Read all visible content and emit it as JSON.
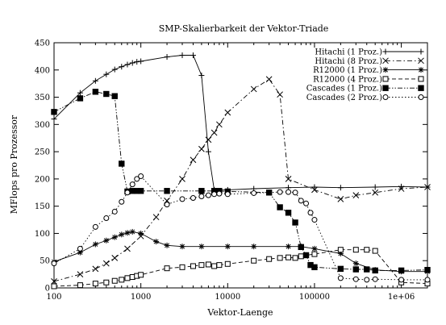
{
  "chart_data": {
    "type": "line",
    "title": "SMP-Skalierbarkeit der Vektor-Triade",
    "xlabel": "Vektor-Laenge",
    "ylabel": "MFlops pro Prozessor",
    "xscale": "log",
    "xlim": [
      100,
      2000000
    ],
    "ylim": [
      0,
      450
    ],
    "xticks": [
      {
        "value": 100,
        "label": "100"
      },
      {
        "value": 1000,
        "label": "1000"
      },
      {
        "value": 10000,
        "label": "10000"
      },
      {
        "value": 100000,
        "label": "100000"
      },
      {
        "value": 1000000,
        "label": "1e+06"
      }
    ],
    "yticks": [
      {
        "value": 0,
        "label": "0"
      },
      {
        "value": 50,
        "label": "50"
      },
      {
        "value": 100,
        "label": "100"
      },
      {
        "value": 150,
        "label": "150"
      },
      {
        "value": 200,
        "label": "200"
      },
      {
        "value": 250,
        "label": "250"
      },
      {
        "value": 300,
        "label": "300"
      },
      {
        "value": 350,
        "label": "350"
      },
      {
        "value": 400,
        "label": "400"
      },
      {
        "value": 450,
        "label": "450"
      }
    ],
    "legend_position": "top-right",
    "grid": false,
    "series": [
      {
        "name": "Hitachi (1 Proz.)",
        "marker": "plus",
        "dash": "solid",
        "points": [
          [
            100,
            310
          ],
          [
            200,
            358
          ],
          [
            300,
            380
          ],
          [
            400,
            392
          ],
          [
            500,
            401
          ],
          [
            600,
            406
          ],
          [
            700,
            410
          ],
          [
            800,
            413
          ],
          [
            900,
            415
          ],
          [
            1000,
            416
          ],
          [
            2000,
            424
          ],
          [
            3000,
            427
          ],
          [
            4000,
            427
          ],
          [
            5000,
            390
          ],
          [
            6000,
            250
          ],
          [
            7000,
            180
          ],
          [
            10000,
            180
          ],
          [
            20000,
            182
          ],
          [
            50000,
            184
          ],
          [
            100000,
            185
          ],
          [
            200000,
            184
          ],
          [
            500000,
            185
          ],
          [
            1000000,
            186
          ],
          [
            2000000,
            185
          ]
        ]
      },
      {
        "name": "Hitachi (8 Proz.)",
        "marker": "x",
        "dash": "dashdot",
        "points": [
          [
            100,
            12
          ],
          [
            200,
            25
          ],
          [
            300,
            35
          ],
          [
            400,
            45
          ],
          [
            500,
            55
          ],
          [
            700,
            72
          ],
          [
            1000,
            95
          ],
          [
            1500,
            130
          ],
          [
            2000,
            160
          ],
          [
            3000,
            200
          ],
          [
            4000,
            235
          ],
          [
            5000,
            255
          ],
          [
            6000,
            272
          ],
          [
            7000,
            285
          ],
          [
            8000,
            300
          ],
          [
            10000,
            322
          ],
          [
            20000,
            365
          ],
          [
            30000,
            383
          ],
          [
            40000,
            355
          ],
          [
            50000,
            200
          ],
          [
            100000,
            180
          ],
          [
            200000,
            163
          ],
          [
            300000,
            170
          ],
          [
            500000,
            175
          ],
          [
            1000000,
            182
          ],
          [
            2000000,
            185
          ]
        ]
      },
      {
        "name": "R12000 (1 Proz.)",
        "marker": "star",
        "dash": "solid",
        "points": [
          [
            100,
            48
          ],
          [
            200,
            65
          ],
          [
            300,
            80
          ],
          [
            400,
            87
          ],
          [
            500,
            93
          ],
          [
            600,
            98
          ],
          [
            700,
            101
          ],
          [
            800,
            103
          ],
          [
            1000,
            100
          ],
          [
            1500,
            85
          ],
          [
            2000,
            78
          ],
          [
            3000,
            76
          ],
          [
            5000,
            76
          ],
          [
            10000,
            76
          ],
          [
            20000,
            76
          ],
          [
            50000,
            76
          ],
          [
            70000,
            76
          ],
          [
            100000,
            72
          ],
          [
            200000,
            63
          ],
          [
            300000,
            45
          ],
          [
            500000,
            33
          ],
          [
            1000000,
            30
          ],
          [
            2000000,
            30
          ]
        ]
      },
      {
        "name": "R12000 (4 Proz.)",
        "marker": "square-open",
        "dash": "dashed",
        "points": [
          [
            100,
            3
          ],
          [
            200,
            5
          ],
          [
            300,
            8
          ],
          [
            400,
            10
          ],
          [
            500,
            13
          ],
          [
            600,
            15
          ],
          [
            700,
            18
          ],
          [
            800,
            20
          ],
          [
            900,
            22
          ],
          [
            1000,
            24
          ],
          [
            2000,
            36
          ],
          [
            3000,
            38
          ],
          [
            4000,
            40
          ],
          [
            5000,
            42
          ],
          [
            6000,
            43
          ],
          [
            7000,
            40
          ],
          [
            8000,
            42
          ],
          [
            10000,
            44
          ],
          [
            20000,
            50
          ],
          [
            30000,
            53
          ],
          [
            40000,
            55
          ],
          [
            50000,
            56
          ],
          [
            60000,
            55
          ],
          [
            70000,
            58
          ],
          [
            80000,
            60
          ],
          [
            100000,
            62
          ],
          [
            200000,
            70
          ],
          [
            300000,
            70
          ],
          [
            400000,
            70
          ],
          [
            500000,
            68
          ],
          [
            1000000,
            10
          ],
          [
            2000000,
            8
          ]
        ]
      },
      {
        "name": "Cascades (1 Proz.)",
        "marker": "square-filled",
        "dash": "dashdotdot",
        "points": [
          [
            100,
            323
          ],
          [
            200,
            348
          ],
          [
            300,
            360
          ],
          [
            400,
            356
          ],
          [
            500,
            352
          ],
          [
            600,
            228
          ],
          [
            700,
            177
          ],
          [
            800,
            178
          ],
          [
            900,
            178
          ],
          [
            1000,
            178
          ],
          [
            2000,
            178
          ],
          [
            5000,
            178
          ],
          [
            7000,
            178
          ],
          [
            8000,
            178
          ],
          [
            10000,
            177
          ],
          [
            30000,
            175
          ],
          [
            40000,
            148
          ],
          [
            50000,
            138
          ],
          [
            60000,
            120
          ],
          [
            70000,
            75
          ],
          [
            80000,
            60
          ],
          [
            90000,
            42
          ],
          [
            100000,
            38
          ],
          [
            200000,
            35
          ],
          [
            300000,
            34
          ],
          [
            400000,
            34
          ],
          [
            500000,
            32
          ],
          [
            1000000,
            32
          ],
          [
            2000000,
            33
          ]
        ]
      },
      {
        "name": "Cascades (2 Proz.)",
        "marker": "circle-open",
        "dash": "dotted",
        "points": [
          [
            100,
            45
          ],
          [
            200,
            72
          ],
          [
            300,
            112
          ],
          [
            400,
            128
          ],
          [
            500,
            140
          ],
          [
            600,
            158
          ],
          [
            700,
            175
          ],
          [
            800,
            190
          ],
          [
            900,
            200
          ],
          [
            1000,
            205
          ],
          [
            2000,
            153
          ],
          [
            3000,
            163
          ],
          [
            4000,
            165
          ],
          [
            5000,
            168
          ],
          [
            6000,
            170
          ],
          [
            7000,
            172
          ],
          [
            8000,
            173
          ],
          [
            10000,
            172
          ],
          [
            20000,
            174
          ],
          [
            40000,
            176
          ],
          [
            50000,
            176
          ],
          [
            60000,
            175
          ],
          [
            70000,
            160
          ],
          [
            80000,
            155
          ],
          [
            90000,
            138
          ],
          [
            100000,
            125
          ],
          [
            200000,
            18
          ],
          [
            300000,
            16
          ],
          [
            400000,
            15
          ],
          [
            500000,
            16
          ],
          [
            1000000,
            15
          ],
          [
            2000000,
            15
          ]
        ]
      }
    ]
  }
}
